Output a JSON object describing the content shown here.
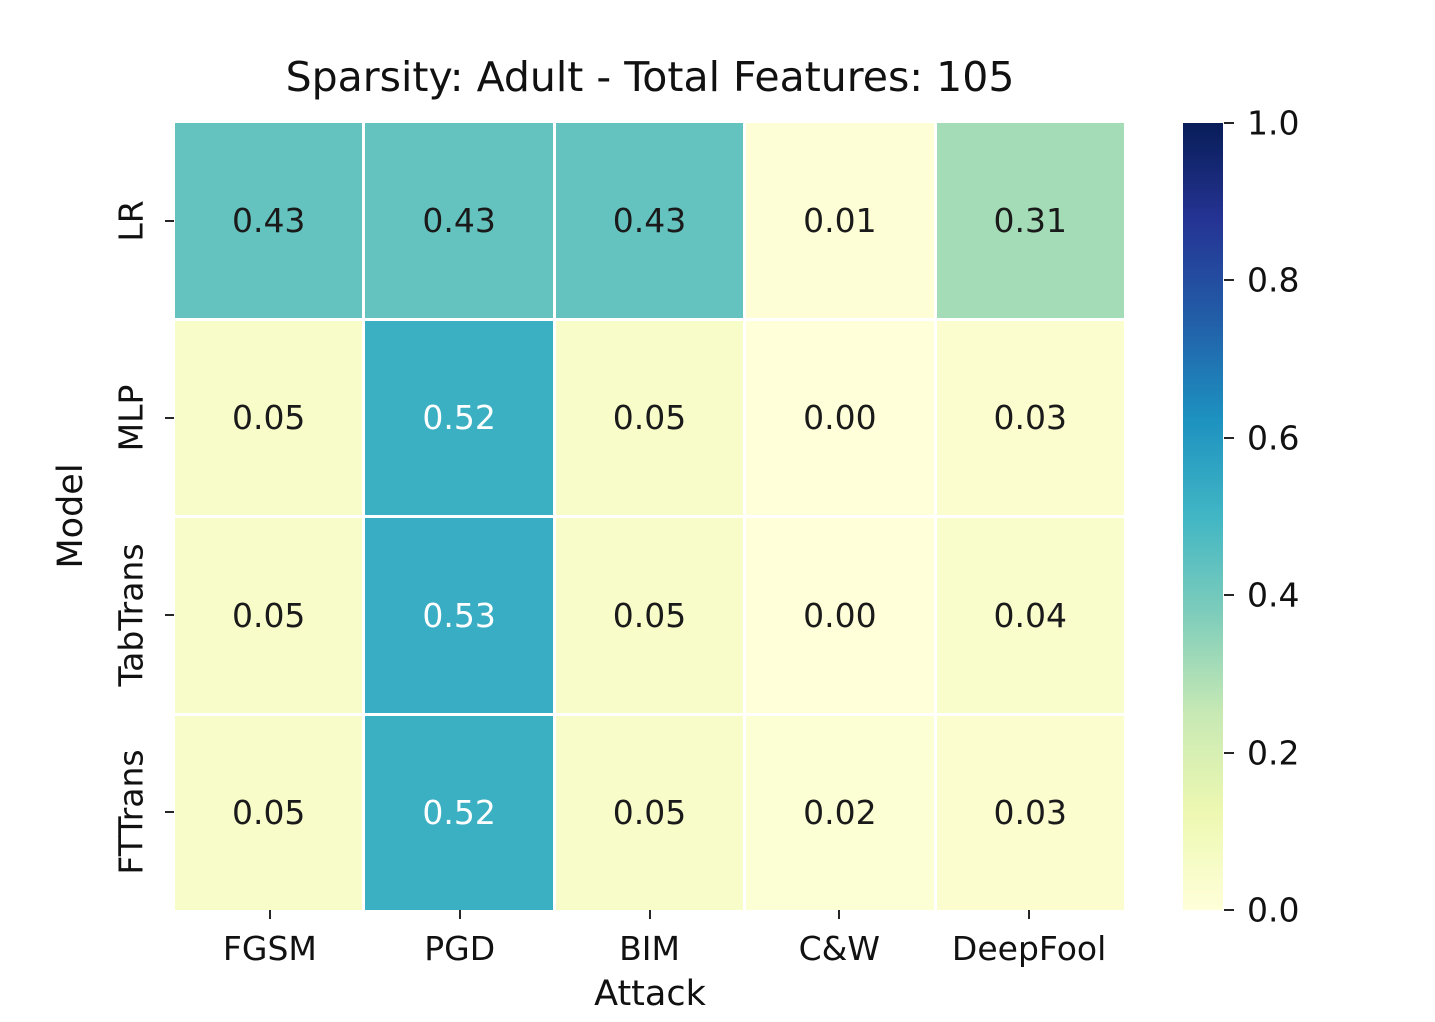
{
  "chart_data": {
    "type": "heatmap",
    "title": "Sparsity: Adult - Total Features: 105",
    "xlabel": "Attack",
    "ylabel": "Model",
    "x_categories": [
      "FGSM",
      "PGD",
      "BIM",
      "C&W",
      "DeepFool"
    ],
    "y_categories": [
      "LR",
      "MLP",
      "TabTrans",
      "FTTrans"
    ],
    "values": [
      [
        0.43,
        0.43,
        0.43,
        0.01,
        0.31
      ],
      [
        0.05,
        0.52,
        0.05,
        0.0,
        0.03
      ],
      [
        0.05,
        0.53,
        0.05,
        0.0,
        0.04
      ],
      [
        0.05,
        0.52,
        0.05,
        0.02,
        0.03
      ]
    ],
    "value_format": ".2f",
    "vmin": 0.0,
    "vmax": 1.0,
    "grid_lines": "white",
    "legend_position": "right-colorbar",
    "colormap": {
      "name": "YlGnBu",
      "stops": [
        {
          "pos": 0.0,
          "color": "#ffffd9"
        },
        {
          "pos": 0.125,
          "color": "#edf8b1"
        },
        {
          "pos": 0.25,
          "color": "#c7e9b4"
        },
        {
          "pos": 0.375,
          "color": "#7fcdbb"
        },
        {
          "pos": 0.5,
          "color": "#41b6c4"
        },
        {
          "pos": 0.625,
          "color": "#1d91c0"
        },
        {
          "pos": 0.75,
          "color": "#225ea8"
        },
        {
          "pos": 0.875,
          "color": "#253494"
        },
        {
          "pos": 1.0,
          "color": "#081d58"
        }
      ]
    },
    "colorbar_ticks": [
      "1.0",
      "0.8",
      "0.6",
      "0.4",
      "0.2",
      "0.0"
    ],
    "annotation_colors": {
      "dark": "#1a1a1a",
      "light": "#ffffff"
    },
    "white_text_threshold": 0.5
  }
}
